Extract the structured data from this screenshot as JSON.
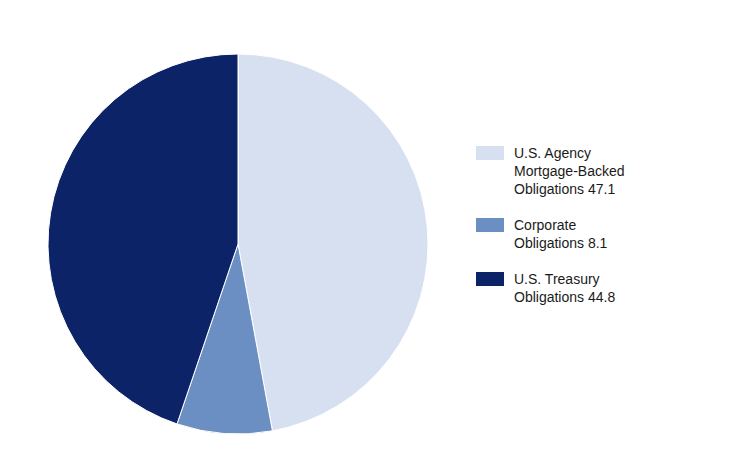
{
  "chart_data": {
    "type": "pie",
    "categories": [
      "U.S. Agency\nMortgage-Backed\nObligations 47.1",
      "Corporate\nObligations 8.1",
      "U.S. Treasury\nObligations 44.8"
    ],
    "values": [
      47.1,
      8.1,
      44.8
    ],
    "colors": [
      "#d6e0f0",
      "#6b8fc2",
      "#0d2368"
    ],
    "legend": "right"
  }
}
